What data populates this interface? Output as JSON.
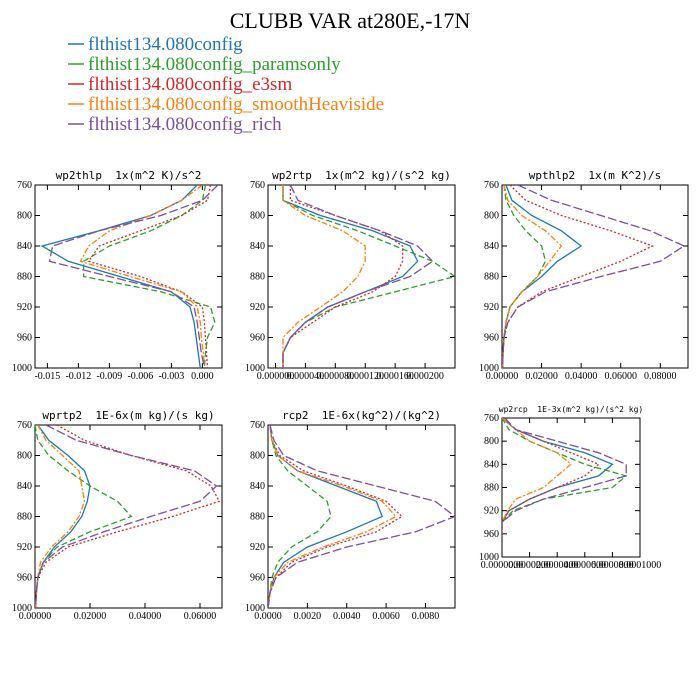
{
  "title": "CLUBB VAR at280E,-17N",
  "legend": [
    {
      "name": "flthist134.080config",
      "color": "#1f77b4",
      "dash": "none"
    },
    {
      "name": "flthist134.080config_paramsonly",
      "color": "#2ca02c",
      "dash": "6,3"
    },
    {
      "name": "flthist134.080config_e3sm",
      "color": "#d62728",
      "dash": "2,2"
    },
    {
      "name": "flthist134.080config_smoothHeaviside",
      "color": "#ff7f0e",
      "dash": "6,2,2,2"
    },
    {
      "name": "flthist134.080config_rich",
      "color": "#7b4fa0",
      "dash": "9,3"
    }
  ],
  "chart_data": [
    {
      "type": "line",
      "title": "wp2thlp  1x(m^2 K)/s^2",
      "y": [
        760,
        780,
        800,
        820,
        840,
        860,
        880,
        900,
        920,
        940,
        960,
        980,
        1000
      ],
      "ylim": [
        760,
        1000
      ],
      "y_inverted": true,
      "yticks": [
        760,
        800,
        840,
        880,
        920,
        960,
        1000
      ],
      "xlim": [
        -0.0162,
        0.0019
      ],
      "xticks": [
        -0.015,
        -0.012,
        -0.009,
        -0.006,
        -0.003,
        {
          "value": 0,
          "label": "0.000"
        }
      ],
      "series": [
        {
          "values": [
            -0.0005,
            -0.002,
            -0.005,
            -0.01,
            -0.0155,
            -0.013,
            -0.008,
            -0.003,
            -0.0012,
            -0.0008,
            -0.0006,
            -0.0004,
            -0.0002
          ]
        },
        {
          "values": [
            0.0003,
            0.0,
            -0.002,
            -0.005,
            -0.009,
            -0.0115,
            -0.0115,
            -0.004,
            0.0008,
            0.0012,
            0.0005,
            0.0003,
            0.0002
          ]
        },
        {
          "values": [
            0.0008,
            0.0005,
            -0.002,
            -0.006,
            -0.01,
            -0.011,
            -0.006,
            -0.002,
            0.0,
            0.0002,
            0.0003,
            0.0004,
            0.0005
          ]
        },
        {
          "values": [
            0.0,
            -0.002,
            -0.005,
            -0.009,
            -0.011,
            -0.0118,
            -0.007,
            -0.002,
            -0.0005,
            -0.0002,
            -0.0001,
            0.0001,
            0.0002
          ]
        },
        {
          "values": [
            0.0015,
            0.0,
            -0.004,
            -0.01,
            -0.0145,
            -0.0148,
            -0.009,
            -0.003,
            -0.0008,
            -0.0005,
            -0.0003,
            -0.0001,
            0.0002
          ]
        }
      ]
    },
    {
      "type": "line",
      "title": "wp2rtp  1x(m^2 kg)/(s^2 kg)",
      "y": [
        760,
        780,
        800,
        820,
        840,
        860,
        880,
        900,
        920,
        940,
        960,
        980,
        1000
      ],
      "ylim": [
        760,
        1000
      ],
      "y_inverted": true,
      "yticks": [
        760,
        800,
        840,
        880,
        920,
        960,
        1000
      ],
      "xlim": [
        -1e-05,
        0.00024
      ],
      "xticks": [
        {
          "value": 0,
          "label": "0.000000"
        },
        {
          "value": 4e-05,
          "label": "0.000040"
        },
        {
          "value": 8e-05,
          "label": "0.000080"
        },
        {
          "value": 0.00012,
          "label": "0.000120"
        },
        {
          "value": 0.00016,
          "label": "0.000160"
        },
        {
          "value": 0.0002,
          "label": "0.000200"
        }
      ],
      "series": [
        {
          "values": [
            1e-05,
            1e-05,
            6e-05,
            0.00013,
            0.00018,
            0.00019,
            0.00017,
            0.00012,
            7e-05,
            4e-05,
            2e-05,
            1e-05,
            1e-05
          ]
        },
        {
          "values": [
            1e-05,
            1e-05,
            5e-05,
            0.00011,
            0.00016,
            0.00021,
            0.00024,
            0.00016,
            8e-05,
            4e-05,
            2e-05,
            1e-05,
            1e-05
          ]
        },
        {
          "values": [
            2e-05,
            2e-05,
            8e-05,
            0.00014,
            0.00017,
            0.00017,
            0.00016,
            0.00013,
            8e-05,
            5e-05,
            2e-05,
            1e-05,
            1e-05
          ]
        },
        {
          "values": [
            1e-05,
            1e-05,
            4e-05,
            9e-05,
            0.00012,
            0.00012,
            0.00011,
            9e-05,
            6e-05,
            3e-05,
            1e-05,
            1e-05,
            1e-05
          ]
        },
        {
          "values": [
            2e-05,
            3e-05,
            8e-05,
            0.00014,
            0.00019,
            0.00021,
            0.00018,
            0.00012,
            7e-05,
            4e-05,
            2e-05,
            1e-05,
            1e-05
          ]
        }
      ]
    },
    {
      "type": "line",
      "title": "wpthlp2  1x(m K^2)/s",
      "y": [
        760,
        780,
        800,
        820,
        840,
        860,
        880,
        900,
        920,
        940,
        960,
        980,
        1000
      ],
      "ylim": [
        760,
        1000
      ],
      "y_inverted": true,
      "yticks": [
        760,
        800,
        840,
        880,
        920,
        960,
        1000
      ],
      "xlim": [
        0,
        0.094
      ],
      "xticks": [
        {
          "value": 0,
          "label": "0.00000"
        },
        {
          "value": 0.02,
          "label": "0.02000"
        },
        {
          "value": 0.04,
          "label": "0.04000"
        },
        {
          "value": 0.06,
          "label": "0.06000"
        },
        {
          "value": 0.08,
          "label": "0.08000"
        }
      ],
      "series": [
        {
          "values": [
            0.002,
            0.005,
            0.015,
            0.03,
            0.04,
            0.028,
            0.02,
            0.01,
            0.004,
            0.002,
            0.001,
            0.0005,
            0.0003
          ]
        },
        {
          "values": [
            0.001,
            0.002,
            0.006,
            0.012,
            0.02,
            0.022,
            0.018,
            0.01,
            0.004,
            0.002,
            0.001,
            0.0005,
            0.0003
          ]
        },
        {
          "values": [
            0.004,
            0.012,
            0.03,
            0.055,
            0.076,
            0.06,
            0.04,
            0.02,
            0.008,
            0.003,
            0.001,
            0.0005,
            0.0003
          ]
        },
        {
          "values": [
            0.001,
            0.003,
            0.01,
            0.022,
            0.03,
            0.024,
            0.018,
            0.01,
            0.004,
            0.002,
            0.001,
            0.0005,
            0.0003
          ]
        },
        {
          "values": [
            0.008,
            0.025,
            0.05,
            0.075,
            0.092,
            0.08,
            0.05,
            0.022,
            0.008,
            0.003,
            0.001,
            0.0005,
            0.0003
          ]
        }
      ]
    },
    {
      "type": "line",
      "title": "wprtp2  1E-6x(m kg)/(s kg)",
      "y": [
        760,
        780,
        800,
        820,
        840,
        860,
        880,
        900,
        920,
        940,
        960,
        980,
        1000
      ],
      "ylim": [
        760,
        1000
      ],
      "y_inverted": true,
      "yticks": [
        760,
        800,
        840,
        880,
        920,
        960,
        1000
      ],
      "xlim": [
        0,
        0.068
      ],
      "xticks": [
        {
          "value": 0,
          "label": "0.00000"
        },
        {
          "value": 0.02,
          "label": "0.02000"
        },
        {
          "value": 0.04,
          "label": "0.04000"
        },
        {
          "value": 0.06,
          "label": "0.06000"
        }
      ],
      "series": [
        {
          "values": [
            0.001,
            0.005,
            0.012,
            0.018,
            0.02,
            0.019,
            0.017,
            0.013,
            0.007,
            0.003,
            0.001,
            0.0005,
            0.0002
          ]
        },
        {
          "values": [
            0.0,
            0.001,
            0.005,
            0.012,
            0.02,
            0.03,
            0.035,
            0.02,
            0.008,
            0.003,
            0.001,
            0.0005,
            0.0002
          ]
        },
        {
          "values": [
            0.008,
            0.018,
            0.035,
            0.055,
            0.064,
            0.067,
            0.05,
            0.03,
            0.012,
            0.004,
            0.001,
            0.0005,
            0.0002
          ]
        },
        {
          "values": [
            0.001,
            0.004,
            0.01,
            0.016,
            0.017,
            0.018,
            0.016,
            0.012,
            0.006,
            0.002,
            0.001,
            0.0005,
            0.0002
          ]
        },
        {
          "values": [
            0.004,
            0.015,
            0.035,
            0.058,
            0.066,
            0.06,
            0.042,
            0.025,
            0.01,
            0.003,
            0.001,
            0.0005,
            0.0002
          ]
        }
      ]
    },
    {
      "type": "line",
      "title": "rcp2  1E-6x(kg^2)/(kg^2)",
      "y": [
        760,
        780,
        800,
        820,
        840,
        860,
        880,
        900,
        920,
        940,
        960,
        980,
        1000
      ],
      "ylim": [
        760,
        1000
      ],
      "y_inverted": true,
      "yticks": [
        760,
        800,
        840,
        880,
        920,
        960,
        1000
      ],
      "xlim": [
        0,
        0.0095
      ],
      "xticks": [
        {
          "value": 0,
          "label": "0.0000"
        },
        {
          "value": 0.002,
          "label": "0.0020"
        },
        {
          "value": 0.004,
          "label": "0.0040"
        },
        {
          "value": 0.006,
          "label": "0.0060"
        },
        {
          "value": 0.008,
          "label": "0.0080"
        }
      ],
      "series": [
        {
          "values": [
            0.0001,
            0.0002,
            0.0005,
            0.0015,
            0.0035,
            0.0055,
            0.0058,
            0.004,
            0.002,
            0.0008,
            0.0003,
            0.0001,
            0.0
          ]
        },
        {
          "values": [
            0.0001,
            0.0002,
            0.0004,
            0.001,
            0.002,
            0.003,
            0.0032,
            0.0025,
            0.0012,
            0.0005,
            0.0002,
            0.0001,
            0.0
          ]
        },
        {
          "values": [
            0.0001,
            0.0002,
            0.0006,
            0.0018,
            0.004,
            0.006,
            0.0068,
            0.0055,
            0.003,
            0.0012,
            0.0004,
            0.0001,
            0.0
          ]
        },
        {
          "values": [
            0.0001,
            0.0002,
            0.0005,
            0.0015,
            0.0038,
            0.0058,
            0.0065,
            0.005,
            0.0028,
            0.001,
            0.0003,
            0.0001,
            0.0
          ]
        },
        {
          "values": [
            0.0001,
            0.0003,
            0.0008,
            0.0025,
            0.0055,
            0.0085,
            0.0095,
            0.0075,
            0.004,
            0.0015,
            0.0004,
            0.0001,
            0.0
          ]
        }
      ]
    },
    {
      "type": "line",
      "title": "wp2rcp  1E-3x(m^2 kg)/(s^2 kg)",
      "y": [
        760,
        780,
        800,
        820,
        840,
        860,
        880,
        900,
        920,
        940,
        960,
        980,
        1000
      ],
      "ylim": [
        760,
        1000
      ],
      "y_inverted": true,
      "yticks": [
        760,
        800,
        840,
        880,
        920,
        960,
        1000
      ],
      "xlim": [
        0,
        0.0001
      ],
      "xticks": [
        {
          "value": 0,
          "label": "0.0000000"
        },
        {
          "value": 2e-05,
          "label": "0.0000200"
        },
        {
          "value": 4e-05,
          "label": "0.0000400"
        },
        {
          "value": 6e-05,
          "label": "0.0000600"
        },
        {
          "value": 8e-05,
          "label": "0.0000800"
        },
        {
          "value": 0.0001,
          "label": "0.0001000"
        }
      ],
      "series": [
        {
          "values": [
            0.0,
            1e-05,
            3e-05,
            6e-05,
            8e-05,
            7e-05,
            4e-05,
            2e-05,
            5e-06,
            0,
            0,
            null,
            null
          ]
        },
        {
          "values": [
            0,
            5e-06,
            2e-05,
            4e-05,
            6e-05,
            9e-05,
            8e-05,
            3e-05,
            8e-06,
            0,
            0,
            null,
            null
          ]
        },
        {
          "values": [
            0,
            1e-05,
            3e-05,
            5e-05,
            7e-05,
            6e-05,
            4e-05,
            2e-05,
            5e-06,
            0,
            0,
            null,
            null
          ]
        },
        {
          "values": [
            0,
            1e-05,
            2e-05,
            4e-05,
            5e-05,
            4e-05,
            3e-05,
            1e-05,
            4e-06,
            0,
            0,
            null,
            null
          ]
        },
        {
          "values": [
            2e-06,
            1e-05,
            4e-05,
            7e-05,
            9e-05,
            9e-05,
            6e-05,
            3e-05,
            1e-05,
            0,
            0,
            null,
            null
          ]
        }
      ]
    }
  ]
}
